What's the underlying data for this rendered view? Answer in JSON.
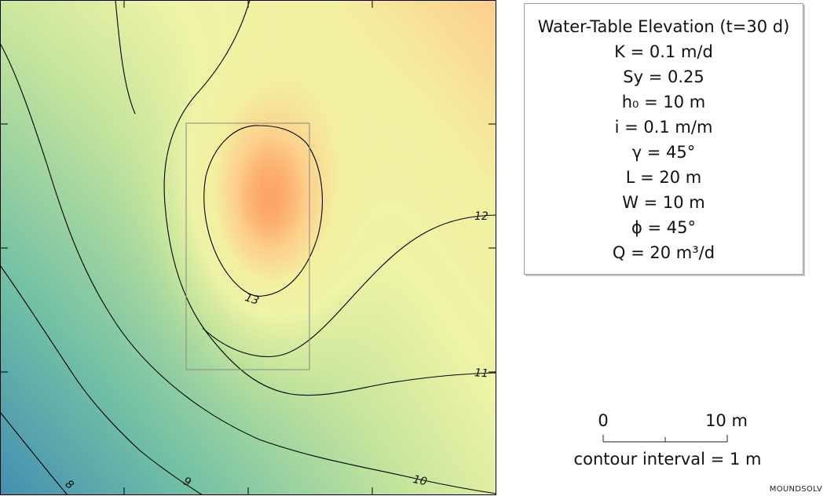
{
  "colors": {
    "frame": "#000000",
    "source_outline": "#888888",
    "contour_line": "#000000",
    "ramp_low": "#3a86b5",
    "ramp_mid": "#f3efa0",
    "ramp_high": "#d43d51"
  },
  "chart_data": {
    "type": "heatmap",
    "title": "Water-Table Elevation (t=30 d)",
    "xlabel": "",
    "ylabel": "",
    "color_scale": "spectral",
    "contour_interval_text": "contour interval = 1 m",
    "contour_levels": [
      8,
      9,
      10,
      11,
      12,
      13
    ],
    "contour_labels": [
      "8",
      "9",
      "10",
      "11",
      "12",
      "13"
    ],
    "scale_bar": {
      "start_label": "0",
      "end_label": "10 m"
    },
    "grid": false
  },
  "legend": {
    "lines": [
      "Water-Table Elevation (t=30 d)",
      "K = 0.1 m/d",
      "Sy = 0.25",
      "h₀ = 10 m",
      "i = 0.1 m/m",
      "γ = 45°",
      "L = 20 m",
      "W = 10 m",
      "ϕ = 45°",
      "Q = 20 m³/d"
    ]
  },
  "footer": {
    "credit": "MOUNDSOLV"
  }
}
